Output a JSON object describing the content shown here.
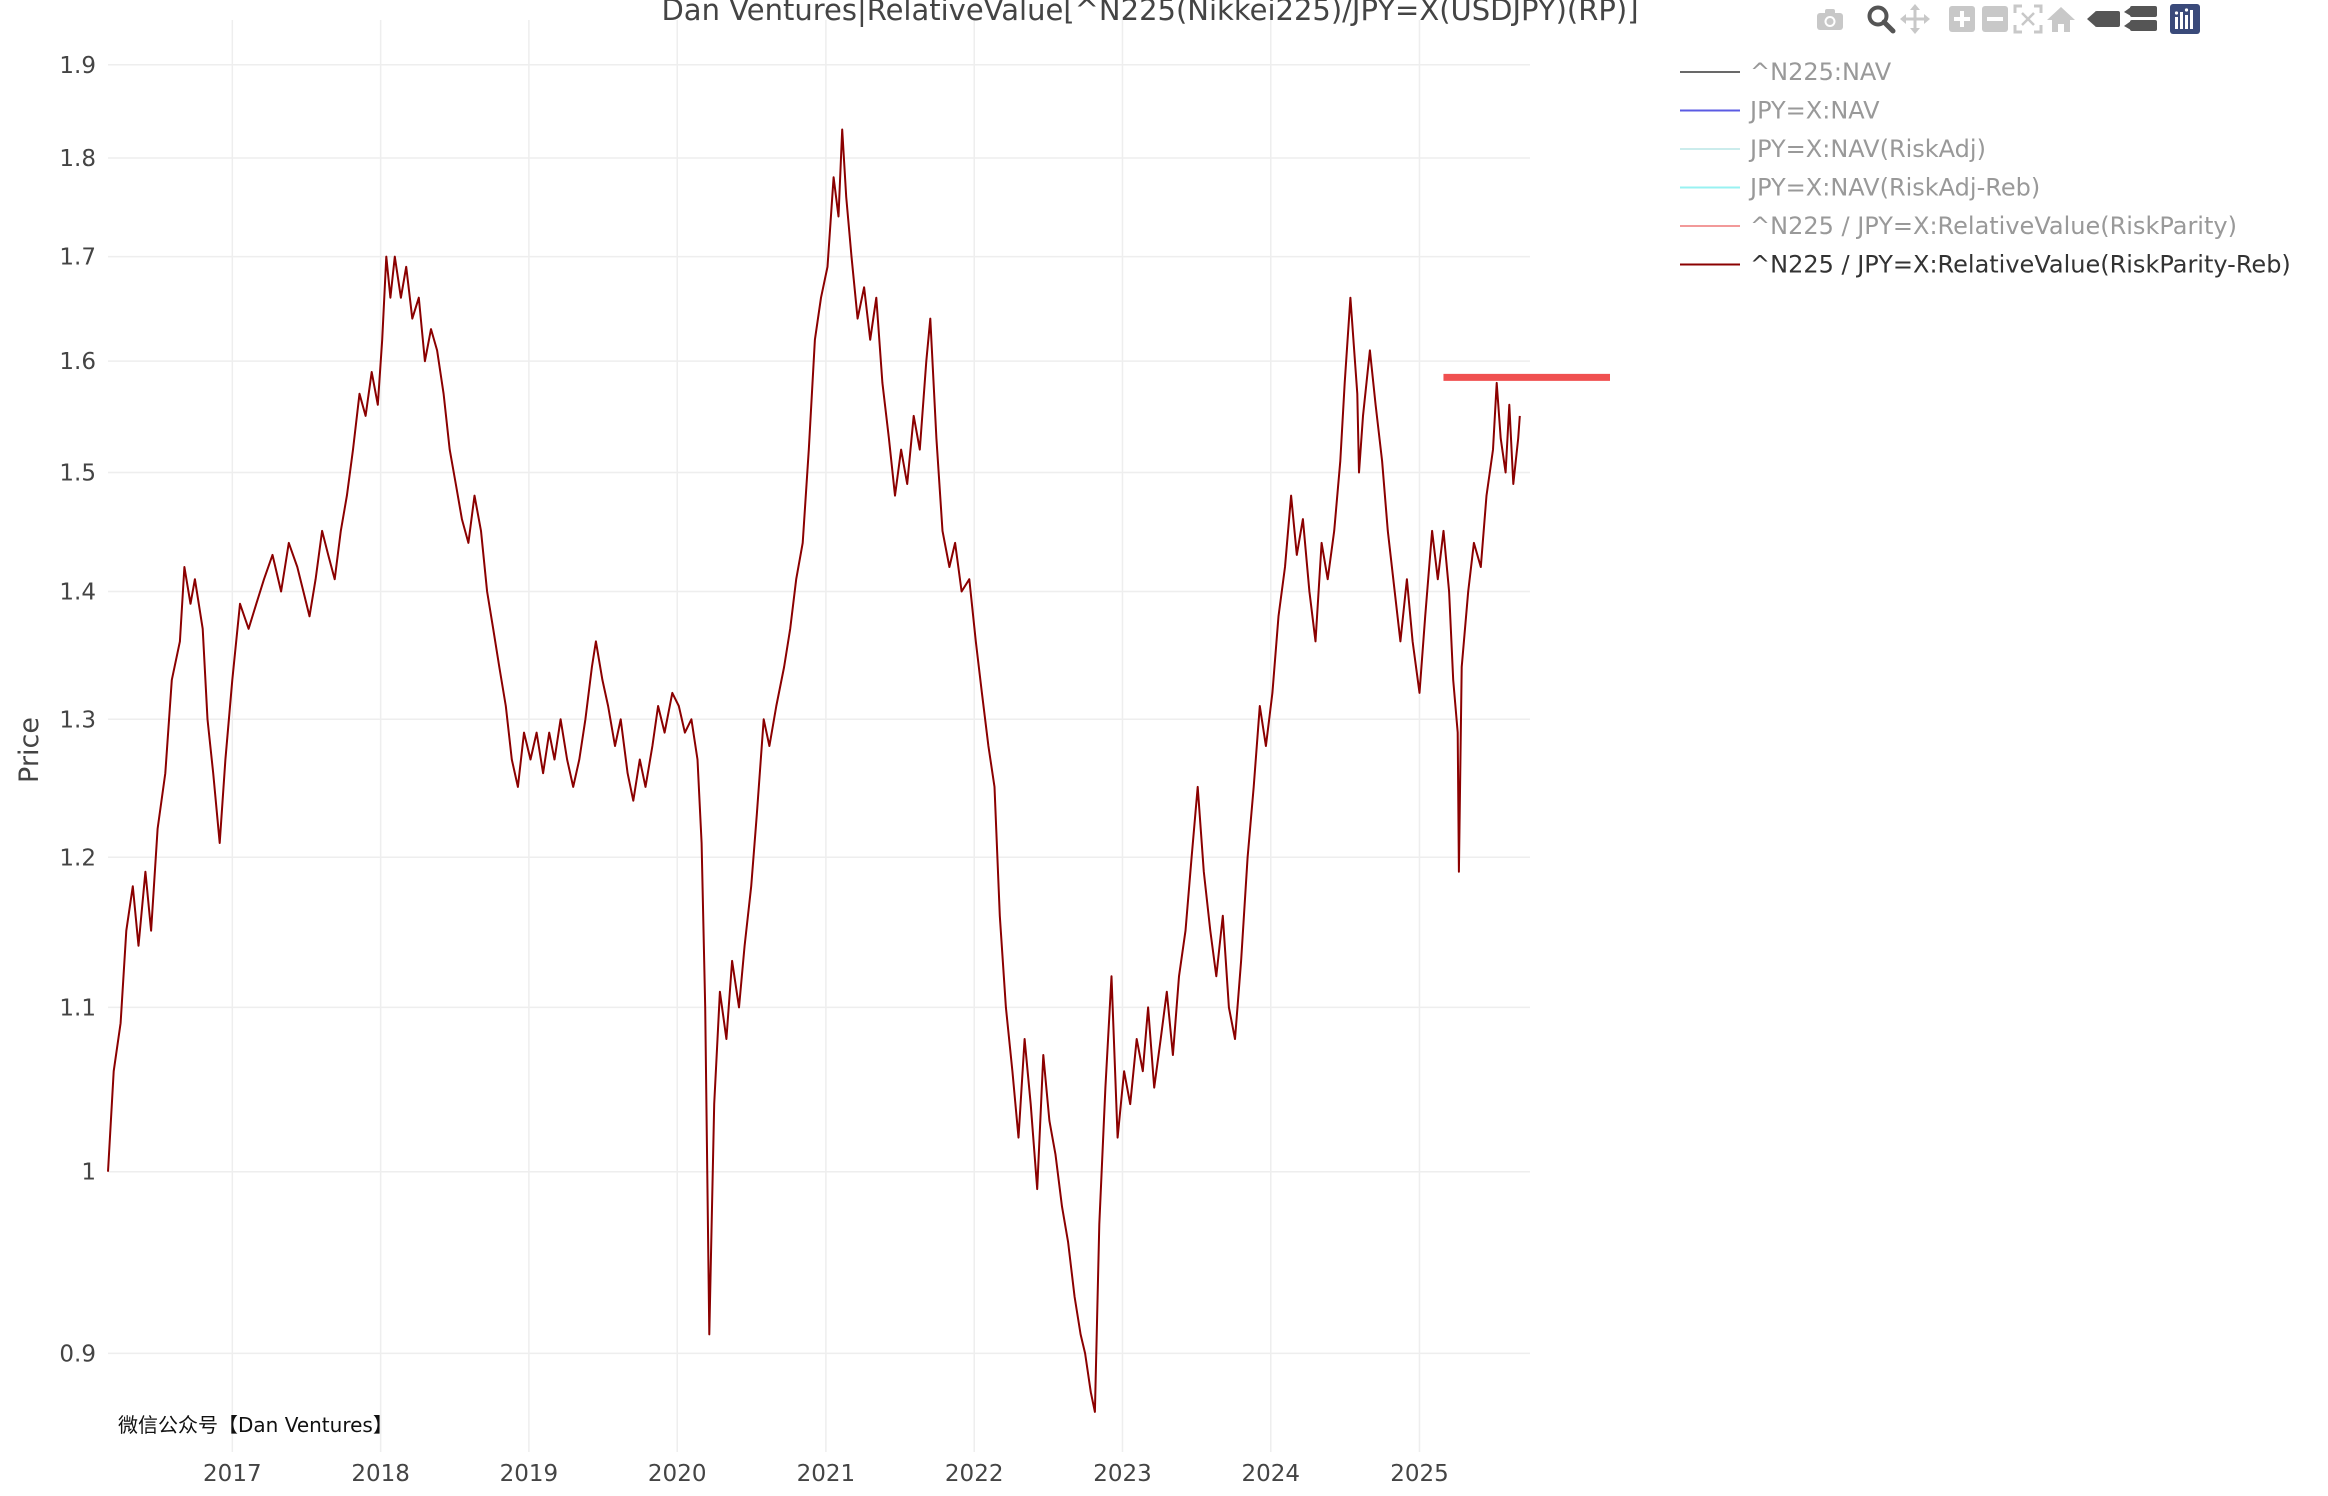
{
  "chart_data": {
    "type": "line",
    "title": "Dan Ventures|RelativeValue[^N225(Nikkei225)/JPY=X(USDJPY)(RP)]",
    "ylabel": "Price",
    "xlabel": "",
    "y_scale": "log",
    "ylim": [
      0.85,
      1.95
    ],
    "xlim": [
      "2016-03-01",
      "2025-09-30"
    ],
    "y_ticks": [
      0.9,
      1,
      1.1,
      1.2,
      1.3,
      1.4,
      1.5,
      1.6,
      1.7,
      1.8,
      1.9
    ],
    "y_tick_labels": [
      "0.9",
      "1",
      "1.1",
      "1.2",
      "1.3",
      "1.4",
      "1.5",
      "1.6",
      "1.7",
      "1.8",
      "1.9"
    ],
    "x_ticks": [
      "2017-01-01",
      "2018-01-01",
      "2019-01-01",
      "2020-01-01",
      "2021-01-01",
      "2022-01-01",
      "2023-01-01",
      "2024-01-01",
      "2025-01-01"
    ],
    "x_tick_labels": [
      "2017",
      "2018",
      "2019",
      "2020",
      "2021",
      "2022",
      "2023",
      "2024",
      "2025"
    ],
    "grid": true,
    "legend_position": "top-right",
    "series": [
      {
        "name": "^N225:NAV",
        "color": "#444444",
        "visible": false
      },
      {
        "name": "JPY=X:NAV",
        "color": "#3333dd",
        "visible": false
      },
      {
        "name": "JPY=X:NAV(RiskAdj)",
        "color": "#bfe8e8",
        "visible": false
      },
      {
        "name": "JPY=X:NAV(RiskAdj-Reb)",
        "color": "#7ff0f0",
        "visible": false
      },
      {
        "name": "^N225 / JPY=X:RelativeValue(RiskParity)",
        "color": "#f08080",
        "visible": false
      },
      {
        "name": "^N225 / JPY=X:RelativeValue(RiskParity-Reb)",
        "color": "#8b0000",
        "visible": true,
        "points": [
          [
            "2016-03-01",
            1.0
          ],
          [
            "2016-03-15",
            1.06
          ],
          [
            "2016-04-01",
            1.09
          ],
          [
            "2016-04-15",
            1.15
          ],
          [
            "2016-05-01",
            1.18
          ],
          [
            "2016-05-15",
            1.14
          ],
          [
            "2016-06-01",
            1.19
          ],
          [
            "2016-06-15",
            1.15
          ],
          [
            "2016-07-01",
            1.22
          ],
          [
            "2016-07-20",
            1.26
          ],
          [
            "2016-08-05",
            1.33
          ],
          [
            "2016-08-25",
            1.36
          ],
          [
            "2016-09-05",
            1.42
          ],
          [
            "2016-09-20",
            1.39
          ],
          [
            "2016-10-01",
            1.41
          ],
          [
            "2016-10-20",
            1.37
          ],
          [
            "2016-11-01",
            1.3
          ],
          [
            "2016-11-15",
            1.26
          ],
          [
            "2016-12-01",
            1.21
          ],
          [
            "2016-12-15",
            1.27
          ],
          [
            "2017-01-01",
            1.33
          ],
          [
            "2017-01-20",
            1.39
          ],
          [
            "2017-02-10",
            1.37
          ],
          [
            "2017-03-01",
            1.39
          ],
          [
            "2017-03-20",
            1.41
          ],
          [
            "2017-04-10",
            1.43
          ],
          [
            "2017-05-01",
            1.4
          ],
          [
            "2017-05-20",
            1.44
          ],
          [
            "2017-06-10",
            1.42
          ],
          [
            "2017-06-25",
            1.4
          ],
          [
            "2017-07-10",
            1.38
          ],
          [
            "2017-07-25",
            1.41
          ],
          [
            "2017-08-10",
            1.45
          ],
          [
            "2017-08-25",
            1.43
          ],
          [
            "2017-09-10",
            1.41
          ],
          [
            "2017-09-25",
            1.45
          ],
          [
            "2017-10-10",
            1.48
          ],
          [
            "2017-10-25",
            1.52
          ],
          [
            "2017-11-10",
            1.57
          ],
          [
            "2017-11-25",
            1.55
          ],
          [
            "2017-12-10",
            1.59
          ],
          [
            "2017-12-25",
            1.56
          ],
          [
            "2018-01-05",
            1.62
          ],
          [
            "2018-01-15",
            1.7
          ],
          [
            "2018-01-25",
            1.66
          ],
          [
            "2018-02-05",
            1.7
          ],
          [
            "2018-02-20",
            1.66
          ],
          [
            "2018-03-05",
            1.69
          ],
          [
            "2018-03-20",
            1.64
          ],
          [
            "2018-04-05",
            1.66
          ],
          [
            "2018-04-20",
            1.6
          ],
          [
            "2018-05-05",
            1.63
          ],
          [
            "2018-05-20",
            1.61
          ],
          [
            "2018-06-05",
            1.57
          ],
          [
            "2018-06-20",
            1.52
          ],
          [
            "2018-07-05",
            1.49
          ],
          [
            "2018-07-20",
            1.46
          ],
          [
            "2018-08-05",
            1.44
          ],
          [
            "2018-08-20",
            1.48
          ],
          [
            "2018-09-05",
            1.45
          ],
          [
            "2018-09-20",
            1.4
          ],
          [
            "2018-10-05",
            1.37
          ],
          [
            "2018-10-20",
            1.34
          ],
          [
            "2018-11-05",
            1.31
          ],
          [
            "2018-11-20",
            1.27
          ],
          [
            "2018-12-05",
            1.25
          ],
          [
            "2018-12-20",
            1.29
          ],
          [
            "2019-01-05",
            1.27
          ],
          [
            "2019-01-20",
            1.29
          ],
          [
            "2019-02-05",
            1.26
          ],
          [
            "2019-02-20",
            1.29
          ],
          [
            "2019-03-05",
            1.27
          ],
          [
            "2019-03-20",
            1.3
          ],
          [
            "2019-04-05",
            1.27
          ],
          [
            "2019-04-20",
            1.25
          ],
          [
            "2019-05-05",
            1.27
          ],
          [
            "2019-05-20",
            1.3
          ],
          [
            "2019-06-05",
            1.34
          ],
          [
            "2019-06-15",
            1.36
          ],
          [
            "2019-07-01",
            1.33
          ],
          [
            "2019-07-15",
            1.31
          ],
          [
            "2019-08-01",
            1.28
          ],
          [
            "2019-08-15",
            1.3
          ],
          [
            "2019-09-01",
            1.26
          ],
          [
            "2019-09-15",
            1.24
          ],
          [
            "2019-10-01",
            1.27
          ],
          [
            "2019-10-15",
            1.25
          ],
          [
            "2019-11-01",
            1.28
          ],
          [
            "2019-11-15",
            1.31
          ],
          [
            "2019-12-01",
            1.29
          ],
          [
            "2019-12-20",
            1.32
          ],
          [
            "2020-01-05",
            1.31
          ],
          [
            "2020-01-20",
            1.29
          ],
          [
            "2020-02-05",
            1.3
          ],
          [
            "2020-02-20",
            1.27
          ],
          [
            "2020-03-01",
            1.21
          ],
          [
            "2020-03-10",
            1.1
          ],
          [
            "2020-03-20",
            0.91
          ],
          [
            "2020-04-01",
            1.04
          ],
          [
            "2020-04-15",
            1.11
          ],
          [
            "2020-05-01",
            1.08
          ],
          [
            "2020-05-15",
            1.13
          ],
          [
            "2020-06-01",
            1.1
          ],
          [
            "2020-06-15",
            1.14
          ],
          [
            "2020-07-01",
            1.18
          ],
          [
            "2020-07-15",
            1.23
          ],
          [
            "2020-08-01",
            1.3
          ],
          [
            "2020-08-15",
            1.28
          ],
          [
            "2020-09-01",
            1.31
          ],
          [
            "2020-09-20",
            1.34
          ],
          [
            "2020-10-05",
            1.37
          ],
          [
            "2020-10-20",
            1.41
          ],
          [
            "2020-11-05",
            1.44
          ],
          [
            "2020-11-20",
            1.52
          ],
          [
            "2020-12-05",
            1.62
          ],
          [
            "2020-12-20",
            1.66
          ],
          [
            "2021-01-05",
            1.69
          ],
          [
            "2021-01-20",
            1.78
          ],
          [
            "2021-02-01",
            1.74
          ],
          [
            "2021-02-10",
            1.83
          ],
          [
            "2021-02-20",
            1.76
          ],
          [
            "2021-03-05",
            1.7
          ],
          [
            "2021-03-20",
            1.64
          ],
          [
            "2021-04-05",
            1.67
          ],
          [
            "2021-04-20",
            1.62
          ],
          [
            "2021-05-05",
            1.66
          ],
          [
            "2021-05-20",
            1.58
          ],
          [
            "2021-06-05",
            1.53
          ],
          [
            "2021-06-20",
            1.48
          ],
          [
            "2021-07-05",
            1.52
          ],
          [
            "2021-07-20",
            1.49
          ],
          [
            "2021-08-05",
            1.55
          ],
          [
            "2021-08-20",
            1.52
          ],
          [
            "2021-09-05",
            1.6
          ],
          [
            "2021-09-15",
            1.64
          ],
          [
            "2021-09-30",
            1.53
          ],
          [
            "2021-10-15",
            1.45
          ],
          [
            "2021-11-01",
            1.42
          ],
          [
            "2021-11-15",
            1.44
          ],
          [
            "2021-12-01",
            1.4
          ],
          [
            "2021-12-20",
            1.41
          ],
          [
            "2022-01-05",
            1.36
          ],
          [
            "2022-01-20",
            1.32
          ],
          [
            "2022-02-05",
            1.28
          ],
          [
            "2022-02-20",
            1.25
          ],
          [
            "2022-03-05",
            1.16
          ],
          [
            "2022-03-20",
            1.1
          ],
          [
            "2022-04-05",
            1.06
          ],
          [
            "2022-04-20",
            1.02
          ],
          [
            "2022-05-05",
            1.08
          ],
          [
            "2022-05-20",
            1.04
          ],
          [
            "2022-06-05",
            0.99
          ],
          [
            "2022-06-20",
            1.07
          ],
          [
            "2022-07-05",
            1.03
          ],
          [
            "2022-07-20",
            1.01
          ],
          [
            "2022-08-05",
            0.98
          ],
          [
            "2022-08-20",
            0.96
          ],
          [
            "2022-09-05",
            0.93
          ],
          [
            "2022-09-20",
            0.91
          ],
          [
            "2022-10-01",
            0.9
          ],
          [
            "2022-10-15",
            0.88
          ],
          [
            "2022-10-25",
            0.87
          ],
          [
            "2022-11-05",
            0.97
          ],
          [
            "2022-11-20",
            1.05
          ],
          [
            "2022-12-05",
            1.12
          ],
          [
            "2022-12-20",
            1.02
          ],
          [
            "2023-01-05",
            1.06
          ],
          [
            "2023-01-20",
            1.04
          ],
          [
            "2023-02-05",
            1.08
          ],
          [
            "2023-02-20",
            1.06
          ],
          [
            "2023-03-05",
            1.1
          ],
          [
            "2023-03-20",
            1.05
          ],
          [
            "2023-04-05",
            1.08
          ],
          [
            "2023-04-20",
            1.11
          ],
          [
            "2023-05-05",
            1.07
          ],
          [
            "2023-05-20",
            1.12
          ],
          [
            "2023-06-05",
            1.15
          ],
          [
            "2023-06-20",
            1.2
          ],
          [
            "2023-07-05",
            1.25
          ],
          [
            "2023-07-20",
            1.19
          ],
          [
            "2023-08-05",
            1.15
          ],
          [
            "2023-08-20",
            1.12
          ],
          [
            "2023-09-05",
            1.16
          ],
          [
            "2023-09-20",
            1.1
          ],
          [
            "2023-10-05",
            1.08
          ],
          [
            "2023-10-20",
            1.13
          ],
          [
            "2023-11-05",
            1.2
          ],
          [
            "2023-11-20",
            1.25
          ],
          [
            "2023-12-05",
            1.31
          ],
          [
            "2023-12-20",
            1.28
          ],
          [
            "2024-01-05",
            1.32
          ],
          [
            "2024-01-20",
            1.38
          ],
          [
            "2024-02-05",
            1.42
          ],
          [
            "2024-02-20",
            1.48
          ],
          [
            "2024-03-05",
            1.43
          ],
          [
            "2024-03-20",
            1.46
          ],
          [
            "2024-04-05",
            1.4
          ],
          [
            "2024-04-20",
            1.36
          ],
          [
            "2024-05-05",
            1.44
          ],
          [
            "2024-05-20",
            1.41
          ],
          [
            "2024-06-05",
            1.45
          ],
          [
            "2024-06-20",
            1.51
          ],
          [
            "2024-07-01",
            1.58
          ],
          [
            "2024-07-15",
            1.66
          ],
          [
            "2024-08-01",
            1.57
          ],
          [
            "2024-08-05",
            1.5
          ],
          [
            "2024-08-15",
            1.55
          ],
          [
            "2024-09-01",
            1.61
          ],
          [
            "2024-09-15",
            1.56
          ],
          [
            "2024-10-01",
            1.51
          ],
          [
            "2024-10-15",
            1.45
          ],
          [
            "2024-11-01",
            1.4
          ],
          [
            "2024-11-15",
            1.36
          ],
          [
            "2024-12-01",
            1.41
          ],
          [
            "2024-12-15",
            1.36
          ],
          [
            "2025-01-01",
            1.32
          ],
          [
            "2025-01-15",
            1.38
          ],
          [
            "2025-02-01",
            1.45
          ],
          [
            "2025-02-15",
            1.41
          ],
          [
            "2025-03-01",
            1.45
          ],
          [
            "2025-03-15",
            1.4
          ],
          [
            "2025-03-25",
            1.33
          ],
          [
            "2025-04-05",
            1.29
          ],
          [
            "2025-04-08",
            1.19
          ],
          [
            "2025-04-15",
            1.34
          ],
          [
            "2025-05-01",
            1.4
          ],
          [
            "2025-05-15",
            1.44
          ],
          [
            "2025-06-01",
            1.42
          ],
          [
            "2025-06-15",
            1.48
          ],
          [
            "2025-07-01",
            1.52
          ],
          [
            "2025-07-10",
            1.58
          ],
          [
            "2025-07-20",
            1.53
          ],
          [
            "2025-08-01",
            1.5
          ],
          [
            "2025-08-10",
            1.56
          ],
          [
            "2025-08-20",
            1.49
          ],
          [
            "2025-09-01",
            1.53
          ],
          [
            "2025-09-05",
            1.55
          ]
        ]
      }
    ],
    "reference_line": {
      "color": "#f05050",
      "y": 1.585,
      "x_start": "2025-03-01"
    }
  },
  "watermark": "微信公众号【Dan Ventures】",
  "modebar": {
    "icons": [
      "camera-icon",
      "zoom-icon",
      "pan-icon",
      "zoom-in-icon",
      "zoom-out-icon",
      "autoscale-icon",
      "home-icon",
      "hover-closest-icon",
      "hover-compare-icon",
      "plotly-logo-icon"
    ]
  }
}
